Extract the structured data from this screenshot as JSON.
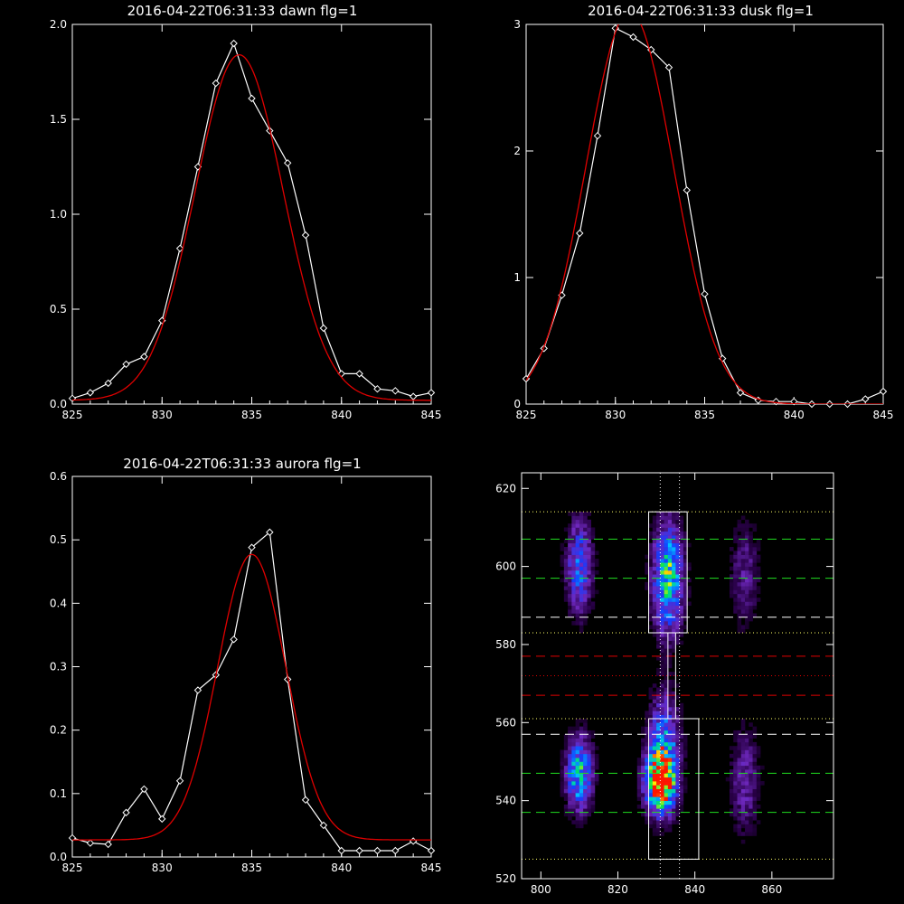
{
  "chart_data": [
    {
      "type": "line",
      "title": "2016-04-22T06:31:33 dawn flg=1",
      "xlim": [
        825,
        845
      ],
      "ylim": [
        0,
        2.0
      ],
      "xticks": [
        "825",
        "830",
        "835",
        "840",
        "845"
      ],
      "yticks": [
        "0.0",
        "0.5",
        "1.0",
        "1.5",
        "2.0"
      ],
      "series": [
        {
          "color": "#ffffff",
          "marker": "diamond",
          "x": [
            825,
            826,
            827,
            828,
            829,
            830,
            831,
            832,
            833,
            834,
            835,
            836,
            837,
            838,
            839,
            840,
            841,
            842,
            843,
            844,
            845
          ],
          "y": [
            0.03,
            0.06,
            0.11,
            0.21,
            0.25,
            0.44,
            0.82,
            1.25,
            1.69,
            1.9,
            1.61,
            1.44,
            1.27,
            0.89,
            0.4,
            0.16,
            0.16,
            0.08,
            0.07,
            0.04,
            0.06
          ]
        },
        {
          "color": "#e00000",
          "fit": "gaussian",
          "amp": 1.82,
          "center": 834.3,
          "sigma": 2.45,
          "offset": 0.02
        }
      ]
    },
    {
      "type": "line",
      "title": "2016-04-22T06:31:33 dusk flg=1",
      "xlim": [
        825,
        845
      ],
      "ylim": [
        0,
        3
      ],
      "xticks": [
        "825",
        "830",
        "835",
        "840",
        "845"
      ],
      "yticks": [
        "0",
        "1",
        "2",
        "3"
      ],
      "series": [
        {
          "color": "#ffffff",
          "marker": "diamond",
          "x": [
            825,
            826,
            827,
            828,
            829,
            830,
            831,
            832,
            833,
            834,
            835,
            836,
            837,
            838,
            839,
            840,
            841,
            842,
            843,
            844,
            845
          ],
          "y": [
            0.2,
            0.44,
            0.86,
            1.35,
            2.12,
            2.97,
            2.9,
            2.8,
            2.66,
            1.69,
            0.87,
            0.36,
            0.09,
            0.03,
            0.02,
            0.02,
            0.0,
            0.0,
            0.0,
            0.04,
            0.1
          ]
        },
        {
          "color": "#e00000",
          "fit": "gaussian",
          "amp": 3.1,
          "center": 830.8,
          "sigma": 2.45,
          "offset": 0.0
        }
      ]
    },
    {
      "type": "line",
      "title": "2016-04-22T06:31:33 aurora flg=1",
      "xlim": [
        825,
        845
      ],
      "ylim": [
        0,
        0.6
      ],
      "xticks": [
        "825",
        "830",
        "835",
        "840",
        "845"
      ],
      "yticks": [
        "0.0",
        "0.1",
        "0.2",
        "0.3",
        "0.4",
        "0.5",
        "0.6"
      ],
      "series": [
        {
          "color": "#ffffff",
          "marker": "diamond",
          "x": [
            825,
            826,
            827,
            828,
            829,
            830,
            831,
            832,
            833,
            834,
            835,
            836,
            837,
            838,
            839,
            840,
            841,
            842,
            843,
            844,
            845
          ],
          "y": [
            0.03,
            0.022,
            0.02,
            0.07,
            0.107,
            0.06,
            0.12,
            0.263,
            0.287,
            0.343,
            0.488,
            0.512,
            0.28,
            0.09,
            0.05,
            0.01,
            0.01,
            0.01,
            0.01,
            0.025,
            0.01
          ]
        },
        {
          "color": "#e00000",
          "fit": "gaussian",
          "amp": 0.45,
          "center": 835.0,
          "sigma": 1.9,
          "offset": 0.027
        }
      ]
    },
    {
      "type": "heatmap",
      "title": "",
      "xlim": [
        795,
        876
      ],
      "ylim": [
        520,
        624
      ],
      "xticks": [
        "800",
        "820",
        "840",
        "860"
      ],
      "yticks": [
        "520",
        "540",
        "560",
        "580",
        "600",
        "620"
      ],
      "blobs": [
        {
          "x": 810,
          "y": 547,
          "sx": 2.2,
          "sy": 6,
          "amp": 0.6
        },
        {
          "x": 810,
          "y": 600,
          "sx": 2.2,
          "sy": 8,
          "amp": 0.4
        },
        {
          "x": 831,
          "y": 545,
          "sx": 2.5,
          "sy": 5,
          "amp": 1.0
        },
        {
          "x": 832,
          "y": 553,
          "sx": 2.5,
          "sy": 9,
          "amp": 0.5
        },
        {
          "x": 833,
          "y": 597,
          "sx": 2.5,
          "sy": 9,
          "amp": 0.65
        },
        {
          "x": 853,
          "y": 545,
          "sx": 2.5,
          "sy": 9,
          "amp": 0.2
        },
        {
          "x": 853,
          "y": 598,
          "sx": 2.5,
          "sy": 9,
          "amp": 0.17
        }
      ],
      "boxes": [
        {
          "x0": 828,
          "x1": 838,
          "y0": 583,
          "y1": 614
        },
        {
          "x0": 828,
          "x1": 841,
          "y0": 525,
          "y1": 561
        }
      ],
      "connector": {
        "x0": 833,
        "x1": 835,
        "y0": 561,
        "y1": 583
      },
      "vlines": [
        831,
        836
      ],
      "hlines": [
        {
          "y": 614,
          "color": "#ffff66",
          "style": "dotted"
        },
        {
          "y": 607,
          "color": "#20dd20",
          "style": "dashed"
        },
        {
          "y": 597,
          "color": "#20dd20",
          "style": "dashed"
        },
        {
          "y": 587,
          "color": "#ffffff",
          "style": "dashed"
        },
        {
          "y": 583,
          "color": "#ffff66",
          "style": "dotted"
        },
        {
          "y": 577,
          "color": "#e00000",
          "style": "dashed"
        },
        {
          "y": 572,
          "color": "#e00000",
          "style": "dotted"
        },
        {
          "y": 567,
          "color": "#e00000",
          "style": "dashed"
        },
        {
          "y": 561,
          "color": "#ffff66",
          "style": "dotted"
        },
        {
          "y": 557,
          "color": "#ffffff",
          "style": "dashed"
        },
        {
          "y": 547,
          "color": "#20dd20",
          "style": "dashed"
        },
        {
          "y": 537,
          "color": "#20dd20",
          "style": "dashed"
        },
        {
          "y": 525,
          "color": "#ffff66",
          "style": "dotted"
        }
      ]
    }
  ]
}
